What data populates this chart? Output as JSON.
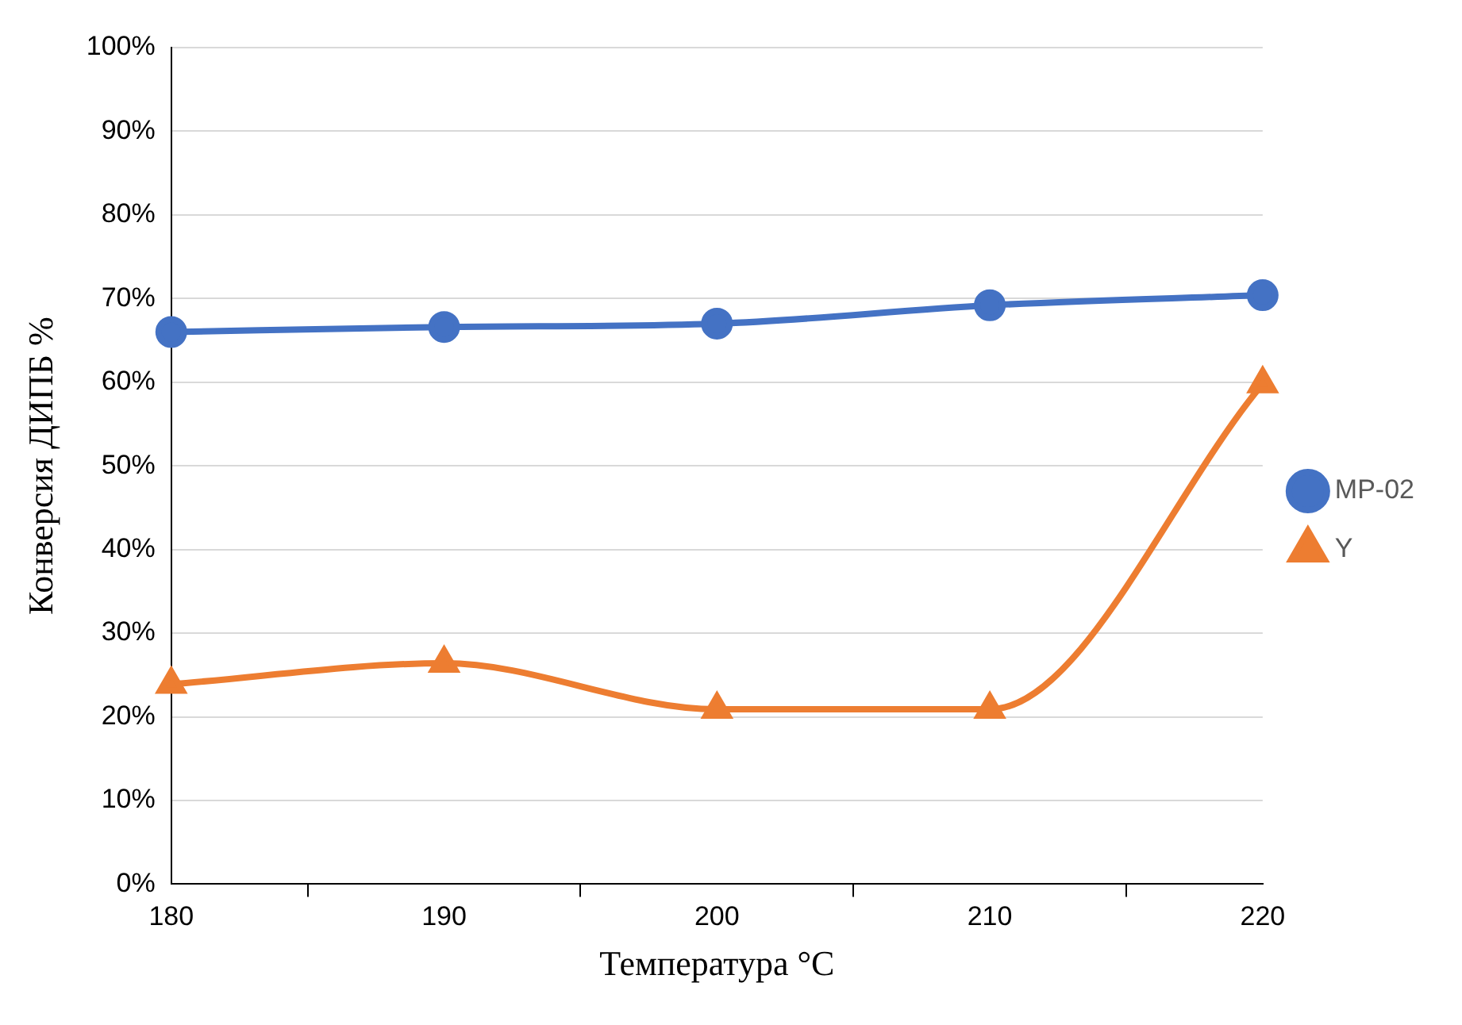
{
  "chart_data": {
    "type": "line",
    "xlabel": "Температура °C",
    "ylabel": "Конверсия ДИПБ %",
    "categories": [
      "180",
      "190",
      "200",
      "210",
      "220"
    ],
    "series": [
      {
        "name": "MP-02",
        "color": "#4472c4",
        "marker": "circle",
        "values": [
          66.0,
          66.6,
          67.0,
          69.2,
          70.4
        ]
      },
      {
        "name": "Y",
        "color": "#ed7d31",
        "marker": "triangle",
        "values": [
          23.9,
          26.4,
          20.9,
          20.9,
          59.8
        ]
      }
    ],
    "ylim": [
      0,
      100
    ],
    "yticks": [
      {
        "value": 0,
        "label": "0%"
      },
      {
        "value": 10,
        "label": "10%"
      },
      {
        "value": 20,
        "label": "20%"
      },
      {
        "value": 30,
        "label": "30%"
      },
      {
        "value": 40,
        "label": "40%"
      },
      {
        "value": 50,
        "label": "50%"
      },
      {
        "value": 60,
        "label": "60%"
      },
      {
        "value": 70,
        "label": "70%"
      },
      {
        "value": 80,
        "label": "80%"
      },
      {
        "value": 90,
        "label": "90%"
      },
      {
        "value": 100,
        "label": "100%"
      }
    ],
    "grid": "y",
    "legend": "right"
  }
}
